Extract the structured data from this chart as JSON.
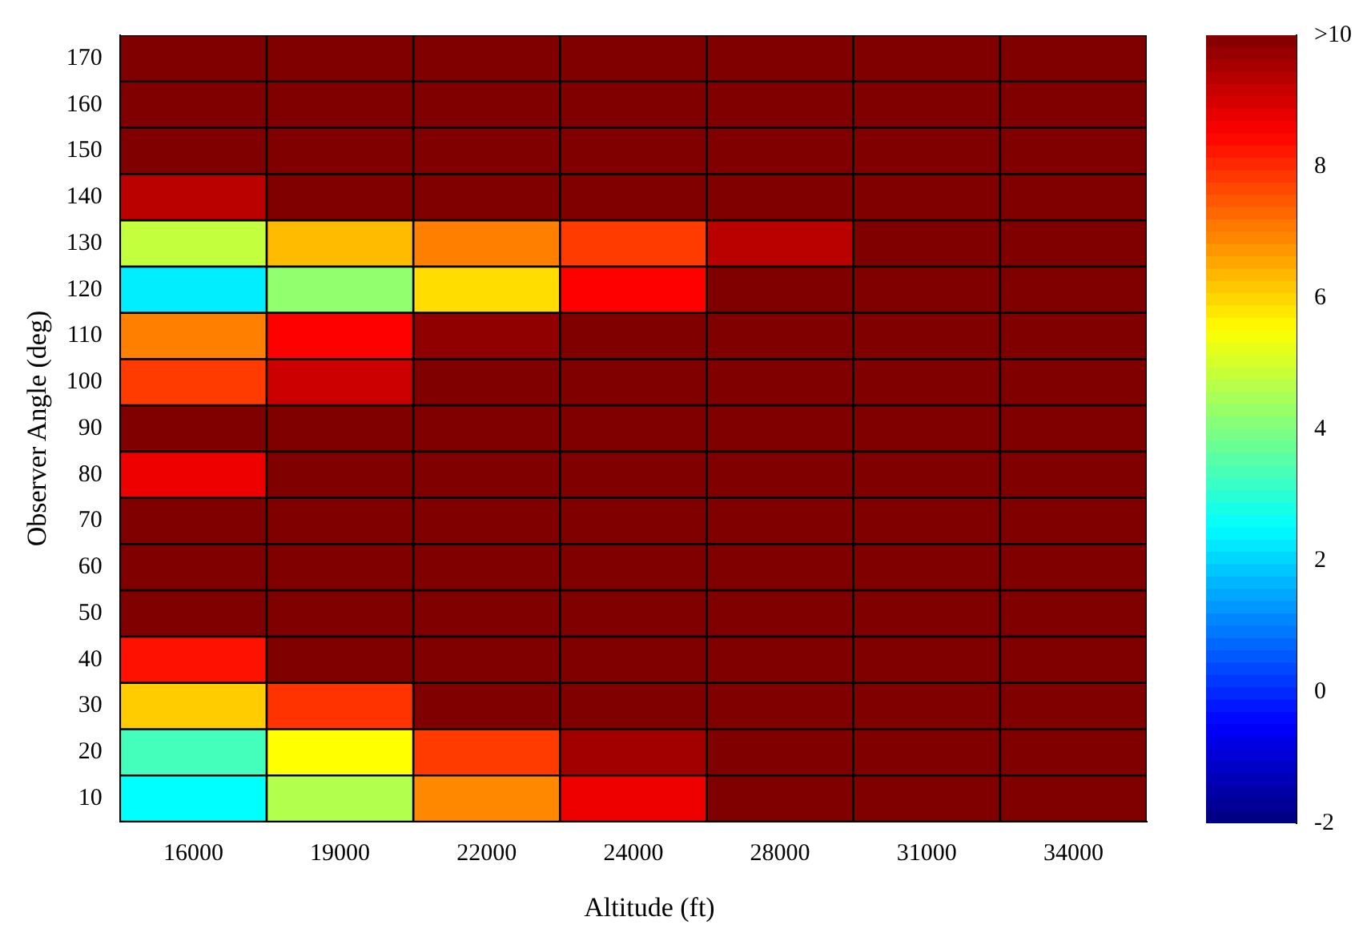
{
  "chart_data": {
    "type": "heatmap",
    "xlabel": "Altitude (ft)",
    "ylabel": "Observer Angle (deg)",
    "categories": [
      "16000",
      "19000",
      "22000",
      "24000",
      "28000",
      "31000",
      "34000"
    ],
    "y_categories": [
      "170",
      "160",
      "150",
      "140",
      "130",
      "120",
      "110",
      "100",
      "90",
      "80",
      "70",
      "60",
      "50",
      "40",
      "30",
      "20",
      "10"
    ],
    "cells": [
      [
        10,
        10,
        10,
        10,
        10,
        10,
        10
      ],
      [
        10,
        10,
        10,
        10,
        10,
        10,
        10
      ],
      [
        10,
        10,
        10,
        10,
        10,
        10,
        10
      ],
      [
        9.3,
        10,
        10,
        10,
        10,
        10,
        10
      ],
      [
        4.8,
        6.3,
        7,
        7.8,
        9.3,
        10,
        10
      ],
      [
        2.3,
        4.2,
        5.9,
        8.5,
        10,
        10,
        10
      ],
      [
        7,
        8.5,
        9.8,
        10,
        10,
        10,
        10
      ],
      [
        7.8,
        9.1,
        10,
        10,
        10,
        10,
        10
      ],
      [
        10,
        10,
        10,
        10,
        10,
        10,
        10
      ],
      [
        8.7,
        10,
        10,
        10,
        10,
        10,
        10
      ],
      [
        10,
        10,
        10,
        10,
        10,
        10,
        10
      ],
      [
        10,
        10,
        10,
        10,
        10,
        10,
        10
      ],
      [
        10,
        10,
        10,
        10,
        10,
        10,
        10
      ],
      [
        8.3,
        10,
        10,
        10,
        10,
        10,
        10
      ],
      [
        6.1,
        7.9,
        10,
        10,
        10,
        10,
        10
      ],
      [
        3.3,
        5.5,
        7.8,
        9.6,
        10,
        10,
        10
      ],
      [
        2.5,
        4.6,
        6.9,
        8.7,
        10,
        10,
        10
      ]
    ],
    "clim": [
      -2,
      10
    ],
    "cticks": [
      -2,
      0,
      2,
      4,
      6,
      8,
      {
        "value": 10,
        "label": ">10"
      }
    ]
  }
}
